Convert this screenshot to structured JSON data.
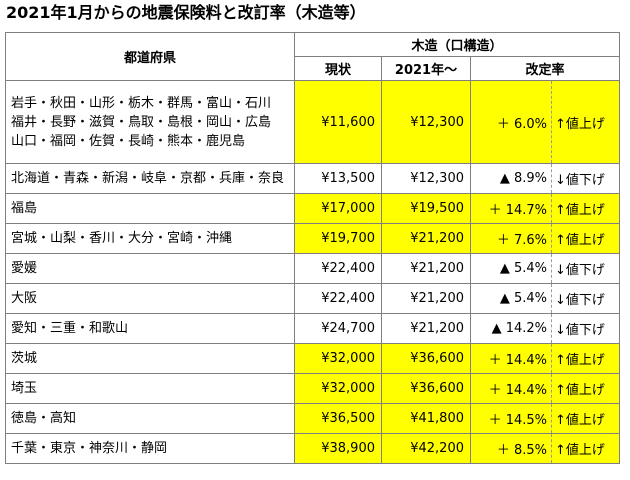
{
  "title": "2021年1月からの地震保険料と改訂率（木造等）",
  "header": {
    "prefecture": "都道府県",
    "structure": "木造（口構造）",
    "current": "現状",
    "from2021": "2021年〜",
    "rate": "改定率"
  },
  "colors": {
    "highlight": "#ffff00",
    "border": "#7f7f7f"
  },
  "rows": [
    {
      "prefs": [
        "岩手・秋田・山形・栃木・群馬・富山・石川",
        "福井・長野・滋賀・鳥取・島根・岡山・広島",
        "山口・福岡・佐賀・長崎・熊本・鹿児島"
      ],
      "current": "¥11,600",
      "new": "¥12,300",
      "change": "＋ 6.0%",
      "direction": "↑値上げ",
      "increase": true
    },
    {
      "prefs": [
        "北海道・青森・新潟・岐阜・京都・兵庫・奈良"
      ],
      "current": "¥13,500",
      "new": "¥12,300",
      "change": "▲ 8.9%",
      "direction": "↓値下げ",
      "increase": false
    },
    {
      "prefs": [
        "福島"
      ],
      "current": "¥17,000",
      "new": "¥19,500",
      "change": "＋ 14.7%",
      "direction": "↑値上げ",
      "increase": true
    },
    {
      "prefs": [
        "宮城・山梨・香川・大分・宮崎・沖縄"
      ],
      "current": "¥19,700",
      "new": "¥21,200",
      "change": "＋ 7.6%",
      "direction": "↑値上げ",
      "increase": true
    },
    {
      "prefs": [
        "愛媛"
      ],
      "current": "¥22,400",
      "new": "¥21,200",
      "change": "▲ 5.4%",
      "direction": "↓値下げ",
      "increase": false
    },
    {
      "prefs": [
        "大阪"
      ],
      "current": "¥22,400",
      "new": "¥21,200",
      "change": "▲ 5.4%",
      "direction": "↓値下げ",
      "increase": false
    },
    {
      "prefs": [
        "愛知・三重・和歌山"
      ],
      "current": "¥24,700",
      "new": "¥21,200",
      "change": "▲ 14.2%",
      "direction": "↓値下げ",
      "increase": false
    },
    {
      "prefs": [
        "茨城"
      ],
      "current": "¥32,000",
      "new": "¥36,600",
      "change": "＋ 14.4%",
      "direction": "↑値上げ",
      "increase": true
    },
    {
      "prefs": [
        "埼玉"
      ],
      "current": "¥32,000",
      "new": "¥36,600",
      "change": "＋ 14.4%",
      "direction": "↑値上げ",
      "increase": true
    },
    {
      "prefs": [
        "徳島・高知"
      ],
      "current": "¥36,500",
      "new": "¥41,800",
      "change": "＋ 14.5%",
      "direction": "↑値上げ",
      "increase": true
    },
    {
      "prefs": [
        "千葉・東京・神奈川・静岡"
      ],
      "current": "¥38,900",
      "new": "¥42,200",
      "change": "＋ 8.5%",
      "direction": "↑値上げ",
      "increase": true
    }
  ]
}
